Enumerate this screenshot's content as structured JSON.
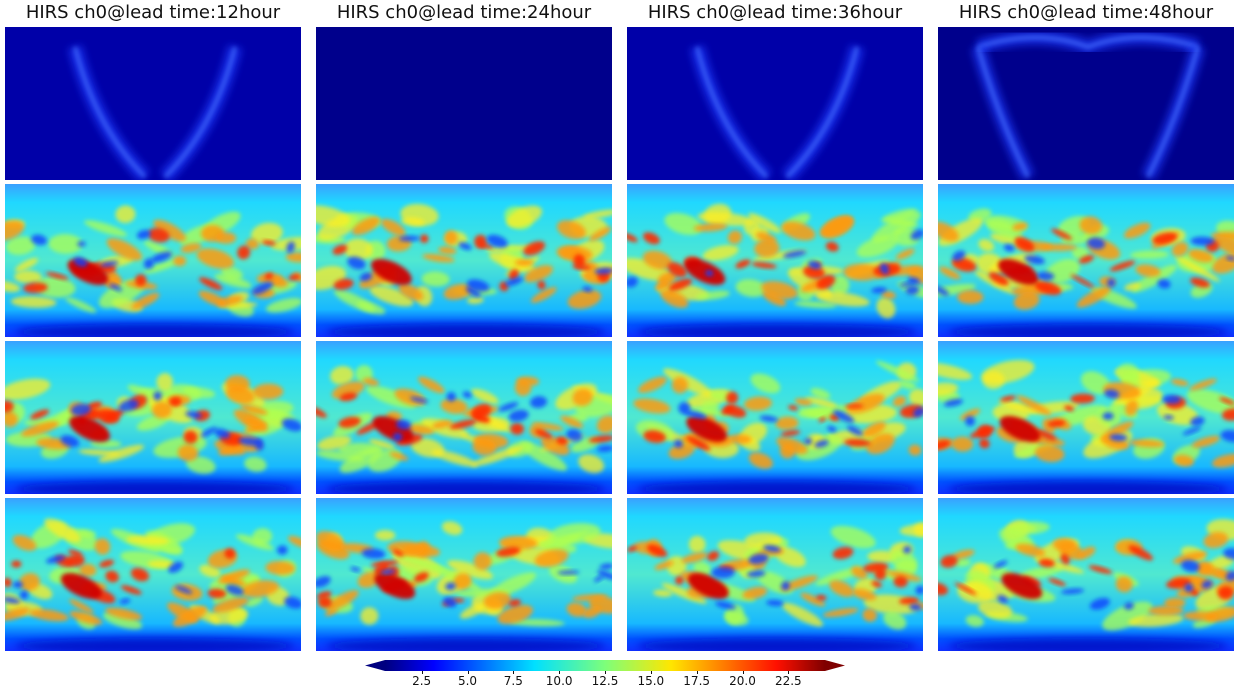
{
  "columns": [
    {
      "title": "HIRS ch0@lead time:12hour"
    },
    {
      "title": "HIRS ch0@lead time:24hour"
    },
    {
      "title": "HIRS ch0@lead time:36hour"
    },
    {
      "title": "HIRS ch0@lead time:48hour"
    }
  ],
  "colorbar": {
    "colormap": "jet",
    "min": 0.5,
    "max": 24.5,
    "ticks": [
      "2.5",
      "5.0",
      "7.5",
      "10.0",
      "12.5",
      "15.0",
      "17.5",
      "20.0",
      "22.5"
    ],
    "tick_values": [
      2.5,
      5.0,
      7.5,
      10.0,
      12.5,
      15.0,
      17.5,
      20.0,
      22.5
    ],
    "extend": "both"
  },
  "grid": {
    "rows": 4,
    "cols": 4
  }
}
